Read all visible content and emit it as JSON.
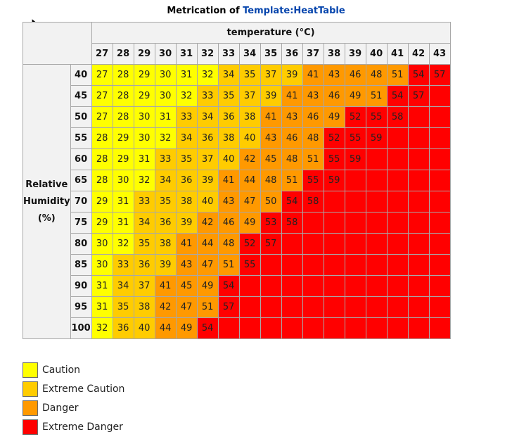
{
  "caption": {
    "prefix": "Metrication of ",
    "link": "Template:HeatTable"
  },
  "table": {
    "temp_header": "temperature (°C)",
    "temperatures": [
      "27",
      "28",
      "29",
      "30",
      "31",
      "32",
      "33",
      "34",
      "35",
      "36",
      "37",
      "38",
      "39",
      "40",
      "41",
      "42",
      "43"
    ],
    "rh_label": [
      "Relative",
      "Humidity",
      "(%)"
    ],
    "rows": [
      {
        "rh": "40",
        "values": [
          "27",
          "28",
          "29",
          "30",
          "31",
          "32",
          "34",
          "35",
          "37",
          "39",
          "41",
          "43",
          "46",
          "48",
          "51",
          "54",
          "57"
        ]
      },
      {
        "rh": "45",
        "values": [
          "27",
          "28",
          "29",
          "30",
          "32",
          "33",
          "35",
          "37",
          "39",
          "41",
          "43",
          "46",
          "49",
          "51",
          "54",
          "57",
          ""
        ]
      },
      {
        "rh": "50",
        "values": [
          "27",
          "28",
          "30",
          "31",
          "33",
          "34",
          "36",
          "38",
          "41",
          "43",
          "46",
          "49",
          "52",
          "55",
          "58",
          "",
          ""
        ]
      },
      {
        "rh": "55",
        "values": [
          "28",
          "29",
          "30",
          "32",
          "34",
          "36",
          "38",
          "40",
          "43",
          "46",
          "48",
          "52",
          "55",
          "59",
          "",
          "",
          ""
        ]
      },
      {
        "rh": "60",
        "values": [
          "28",
          "29",
          "31",
          "33",
          "35",
          "37",
          "40",
          "42",
          "45",
          "48",
          "51",
          "55",
          "59",
          "",
          "",
          "",
          ""
        ]
      },
      {
        "rh": "65",
        "values": [
          "28",
          "30",
          "32",
          "34",
          "36",
          "39",
          "41",
          "44",
          "48",
          "51",
          "55",
          "59",
          "",
          "",
          "",
          "",
          ""
        ]
      },
      {
        "rh": "70",
        "values": [
          "29",
          "31",
          "33",
          "35",
          "38",
          "40",
          "43",
          "47",
          "50",
          "54",
          "58",
          "",
          "",
          "",
          "",
          "",
          ""
        ]
      },
      {
        "rh": "75",
        "values": [
          "29",
          "31",
          "34",
          "36",
          "39",
          "42",
          "46",
          "49",
          "53",
          "58",
          "",
          "",
          "",
          "",
          "",
          "",
          ""
        ]
      },
      {
        "rh": "80",
        "values": [
          "30",
          "32",
          "35",
          "38",
          "41",
          "44",
          "48",
          "52",
          "57",
          "",
          "",
          "",
          "",
          "",
          "",
          "",
          ""
        ]
      },
      {
        "rh": "85",
        "values": [
          "30",
          "33",
          "36",
          "39",
          "43",
          "47",
          "51",
          "55",
          "",
          "",
          "",
          "",
          "",
          "",
          "",
          "",
          ""
        ]
      },
      {
        "rh": "90",
        "values": [
          "31",
          "34",
          "37",
          "41",
          "45",
          "49",
          "54",
          "",
          "",
          "",
          "",
          "",
          "",
          "",
          "",
          "",
          ""
        ]
      },
      {
        "rh": "95",
        "values": [
          "31",
          "35",
          "38",
          "42",
          "47",
          "51",
          "57",
          "",
          "",
          "",
          "",
          "",
          "",
          "",
          "",
          "",
          ""
        ]
      },
      {
        "rh": "100",
        "values": [
          "32",
          "36",
          "40",
          "44",
          "49",
          "54",
          "",
          "",
          "",
          "",
          "",
          "",
          "",
          "",
          "",
          "",
          ""
        ]
      }
    ]
  },
  "colors": {
    "caution": "#ffff00",
    "extreme_caution": "#ffcc00",
    "danger": "#ff9900",
    "extreme_danger": "#ff0000"
  },
  "legend": [
    {
      "label": "Caution",
      "color": "#ffff00"
    },
    {
      "label": "Extreme Caution",
      "color": "#ffcc00"
    },
    {
      "label": "Danger",
      "color": "#ff9900"
    },
    {
      "label": "Extreme Danger",
      "color": "#ff0000"
    }
  ]
}
